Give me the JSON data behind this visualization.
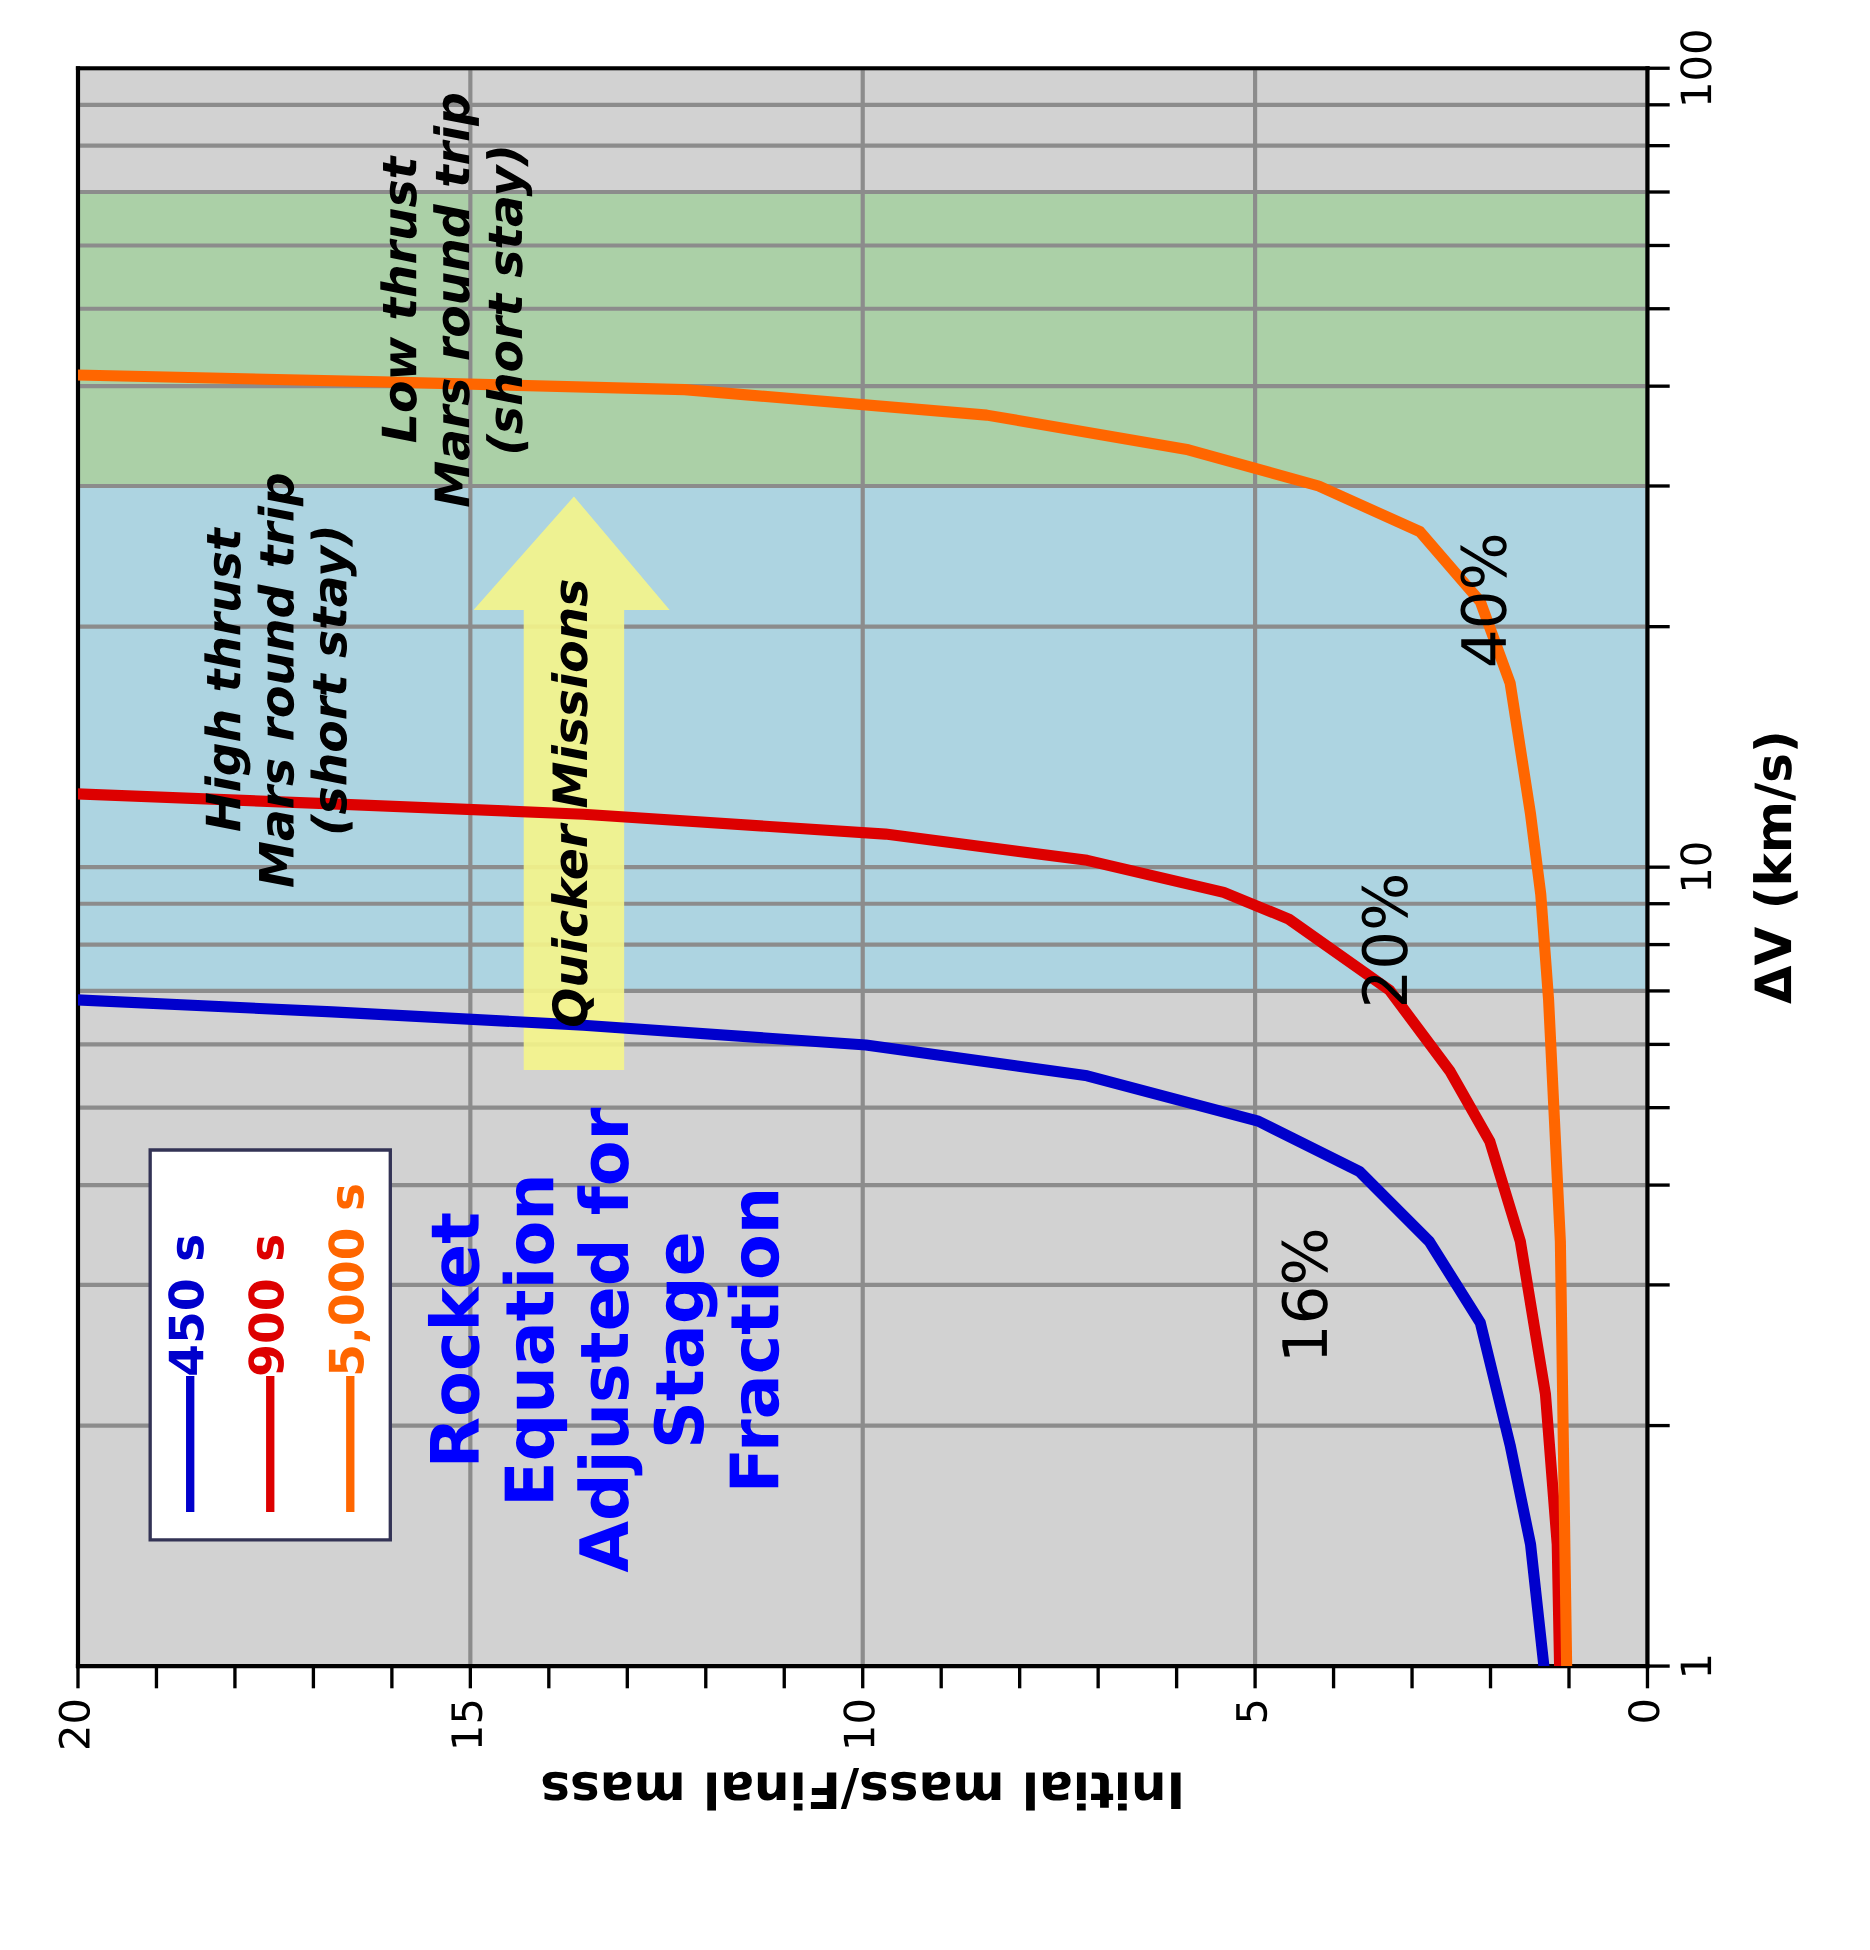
{
  "chart_data": {
    "type": "line",
    "xlabel": "Initial mass/Final mass",
    "ylabel": "ΔV (km/s)",
    "xlim": [
      20,
      0
    ],
    "ylim": [
      1,
      100
    ],
    "log": "y",
    "xticks": [
      20,
      {
        "value": 19,
        "label": null
      },
      {
        "value": 18,
        "label": null
      },
      {
        "value": 17,
        "label": null
      },
      {
        "value": 16,
        "label": null
      },
      15,
      {
        "value": 14,
        "label": null
      },
      {
        "value": 13,
        "label": null
      },
      {
        "value": 12,
        "label": null
      },
      {
        "value": 11,
        "label": null
      },
      10,
      {
        "value": 9,
        "label": null
      },
      {
        "value": 8,
        "label": null
      },
      {
        "value": 7,
        "label": null
      },
      {
        "value": 6,
        "label": null
      },
      5,
      {
        "value": 4,
        "label": null
      },
      {
        "value": 3,
        "label": null
      },
      {
        "value": 2,
        "label": null
      },
      {
        "value": 1,
        "label": null
      },
      0
    ],
    "yticks": [
      1,
      {
        "value": 2,
        "label": null
      },
      {
        "value": 3,
        "label": null
      },
      {
        "value": 4,
        "label": null
      },
      {
        "value": 5,
        "label": null
      },
      {
        "value": 6,
        "label": null
      },
      {
        "value": 7,
        "label": null
      },
      {
        "value": 8,
        "label": null
      },
      {
        "value": 9,
        "label": null
      },
      10,
      {
        "value": 20,
        "label": null
      },
      {
        "value": 30,
        "label": null
      },
      {
        "value": 40,
        "label": null
      },
      {
        "value": 50,
        "label": null
      },
      {
        "value": 60,
        "label": null
      },
      {
        "value": 70,
        "label": null
      },
      {
        "value": 80,
        "label": null
      },
      {
        "value": 90,
        "label": null
      },
      100
    ],
    "grid": true,
    "legend": "bottom left",
    "bands": [
      {
        "axis": "y",
        "from": 7,
        "to": 30,
        "color": "#a8d4e2"
      },
      {
        "axis": "y",
        "from": 30,
        "to": 70,
        "color": "#a6cfa2"
      }
    ],
    "annotations": [
      "High thrust\nMars round trip\n(short stay)",
      "Low thrust\nMars round trip\n(short stay)",
      "Quicker Missions",
      "Rocket\nEquation\nAdjusted for\nStage\nFraction",
      "16%",
      "20%",
      "40%"
    ],
    "series": [
      {
        "name": "450 s",
        "color": "#0000cc",
        "x": [
          1.32,
          1.49,
          1.75,
          2.13,
          2.78,
          3.67,
          4.96,
          7.14,
          9.96,
          13.56,
          16.76,
          20
        ],
        "values": [
          1,
          1.42,
          1.89,
          2.69,
          3.4,
          4.16,
          4.81,
          5.48,
          5.99,
          6.34,
          6.59,
          6.82
        ]
      },
      {
        "name": "900 s",
        "color": "#dd0000",
        "x": [
          1.12,
          1.15,
          1.3,
          1.62,
          2.01,
          2.52,
          3.29,
          4.57,
          5.4,
          7.14,
          9.71,
          13.56,
          16.76,
          20
        ],
        "values": [
          1,
          1.42,
          2.19,
          3.4,
          4.54,
          5.56,
          7.02,
          8.61,
          9.3,
          10.2,
          11.0,
          11.65,
          12.0,
          12.35
        ]
      },
      {
        "name": "5,000 s",
        "color": "#ff6600",
        "x": [
          1.03,
          1.11,
          1.26,
          1.36,
          1.49,
          1.75,
          2.13,
          2.9,
          4.19,
          5.85,
          8.42,
          12.27,
          16.13,
          20
        ],
        "values": [
          1,
          3.4,
          6.82,
          9.25,
          11.65,
          17.0,
          21.5,
          26.3,
          30.0,
          33.3,
          36.8,
          39.6,
          40.5,
          41.3
        ]
      }
    ]
  }
}
